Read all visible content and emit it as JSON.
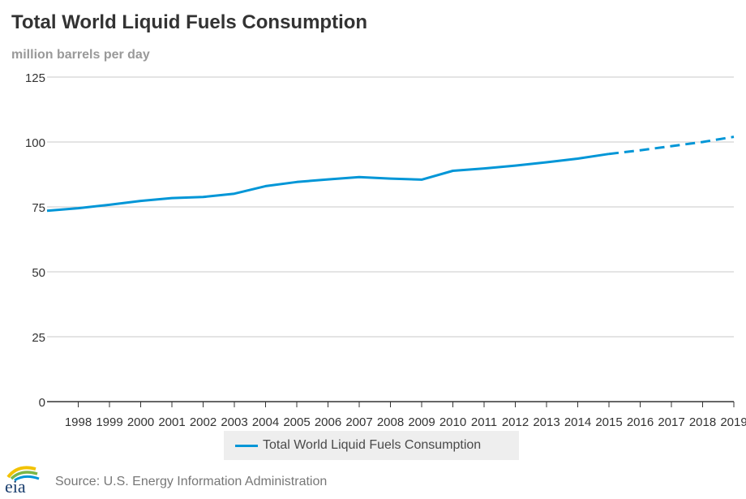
{
  "header": {
    "title": "Total World Liquid Fuels Consumption",
    "subtitle": "million barrels per day"
  },
  "legend": {
    "label": "Total World Liquid Fuels Consumption",
    "color": "#0096d7"
  },
  "footer": {
    "source": "Source: U.S. Energy Information Administration",
    "logo_text": "eia"
  },
  "chart_data": {
    "type": "line",
    "title": "Total World Liquid Fuels Consumption",
    "subtitle": "million barrels per day",
    "xlabel": "",
    "ylabel": "million barrels per day",
    "ylim": [
      0,
      125
    ],
    "yticks": [
      0,
      25,
      50,
      75,
      100,
      125
    ],
    "grid": true,
    "legend_position": "bottom-center",
    "categories": [
      "1998",
      "1999",
      "2000",
      "2001",
      "2002",
      "2003",
      "2004",
      "2005",
      "2006",
      "2007",
      "2008",
      "2009",
      "2010",
      "2011",
      "2012",
      "2013",
      "2014",
      "2015",
      "2016",
      "2017",
      "2018",
      "2019"
    ],
    "series": [
      {
        "name": "Total World Liquid Fuels Consumption",
        "color": "#0096d7",
        "x": [
          1997,
          1998,
          1999,
          2000,
          2001,
          2002,
          2003,
          2004,
          2005,
          2006,
          2007,
          2008,
          2009,
          2010,
          2011,
          2012,
          2013,
          2014,
          2015,
          2016,
          2017,
          2018,
          2019
        ],
        "values": [
          73.5,
          74.5,
          75.8,
          77.3,
          78.4,
          78.8,
          80.1,
          83.0,
          84.6,
          85.6,
          86.5,
          85.9,
          85.5,
          88.9,
          89.8,
          90.9,
          92.2,
          93.6,
          95.4,
          96.8,
          98.4,
          100.0,
          102.0
        ],
        "projection_from": 2015
      }
    ]
  }
}
